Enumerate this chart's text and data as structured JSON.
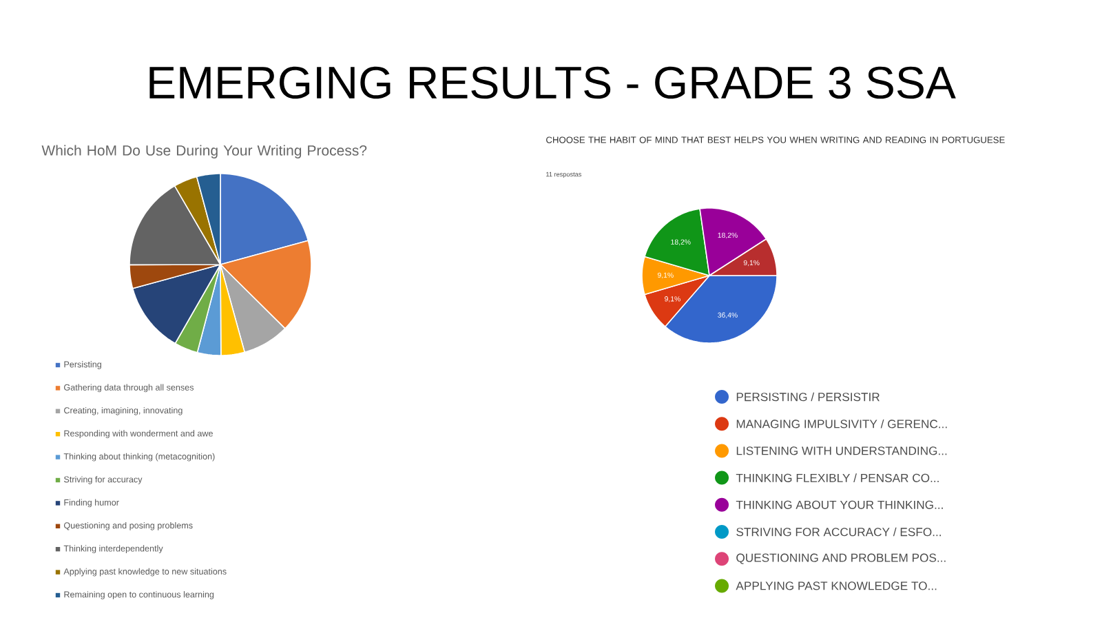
{
  "chart_data": [
    {
      "type": "pie",
      "title": "Which HoM Do Use During Your Writing Process?",
      "annotations": [
        "EMERGING RESULTS - GRADE 3 SSA"
      ],
      "categories": [
        "Persisting",
        "Gathering data through all senses",
        "Creating, imagining, innovating",
        "Responding with wonderment and awe",
        "Thinking about thinking (metacognition)",
        "Striving for accuracy",
        "Finding humor",
        "Questioning and posing problems",
        "Thinking interdependently",
        "Applying past knowledge to new situations",
        "Remaining open to continuous learning"
      ],
      "values": [
        20.8,
        16.7,
        8.3,
        4.2,
        4.2,
        4.2,
        12.5,
        4.2,
        16.7,
        4.2,
        4.2
      ],
      "colors": [
        "#4472c4",
        "#ed7d31",
        "#a5a5a5",
        "#ffc000",
        "#5b9bd5",
        "#70ad47",
        "#264478",
        "#9e480e",
        "#636363",
        "#997300",
        "#255e91"
      ],
      "legend": "bottom"
    },
    {
      "type": "pie",
      "title": "CHOOSE THE HABIT OF MIND THAT BEST HELPS YOU WHEN WRITING AND READING IN PORTUGUESE",
      "subtitle": "11 respostas",
      "categories": [
        "PERSISTING / PERSISTIR",
        "MANAGING IMPULSIVITY / GERENC...",
        "LISTENING WITH UNDERSTANDING...",
        "THINKING FLEXIBLY / PENSAR CO...",
        "THINKING ABOUT YOUR THINKING...",
        "STRIVING FOR ACCURACY / ESFO...",
        "QUESTIONING AND PROBLEM POS...",
        "APPLYING PAST KNOWLEDGE TO...",
        null
      ],
      "values": [
        36.4,
        9.1,
        9.1,
        18.2,
        18.2,
        0,
        0,
        0,
        9.1
      ],
      "value_labels": [
        "36,4%",
        "9,1%",
        "9,1%",
        "18,2%",
        "18,2%",
        null,
        null,
        null,
        "9,1%"
      ],
      "colors": [
        "#3366cc",
        "#dc3912",
        "#ff9900",
        "#109618",
        "#990099",
        "#0099c6",
        "#dd4477",
        "#66aa00",
        "#b82e2e"
      ],
      "legend": "bottom right"
    }
  ]
}
